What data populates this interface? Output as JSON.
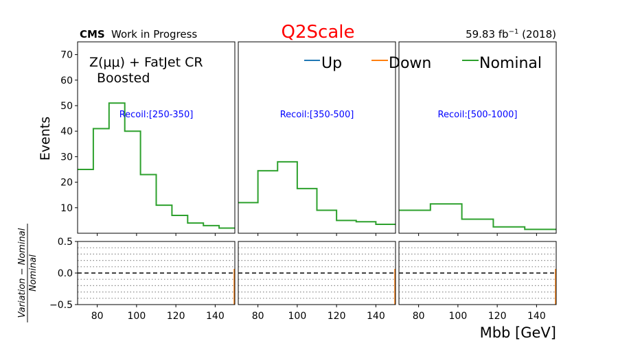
{
  "header": {
    "experiment": "CMS",
    "experiment_note": "Work in Progress",
    "title": "Q2Scale",
    "title_color": "#ff0000",
    "lumi_value": "59.83 fb",
    "lumi_exp": "−1",
    "lumi_year": "(2018)"
  },
  "region": {
    "line1": "Z(μμ) + FatJet CR",
    "line2": "Boosted"
  },
  "legend": [
    {
      "label": "Up",
      "color": "#1f77b4"
    },
    {
      "label": "Down",
      "color": "#ff7f0e"
    },
    {
      "label": "Nominal",
      "color": "#2ca02c"
    }
  ],
  "axes": {
    "ylabel_top": "Events",
    "ylabel_bottom_num": "Variation − Nominal",
    "ylabel_bottom_den": "Nominal",
    "xlabel": "Mbb [GeV]"
  },
  "chart_data": {
    "type": "step",
    "xlim": [
      70,
      150
    ],
    "ylim_top": [
      0,
      75
    ],
    "ylim_ratio": [
      -0.5,
      0.5
    ],
    "x_ticks": [
      80,
      100,
      120,
      140
    ],
    "y_ticks_top": [
      10,
      20,
      30,
      40,
      50,
      60,
      70
    ],
    "y_ticks_ratio": [
      -0.5,
      0.0,
      0.5
    ],
    "ratio_gridlines": [
      0.4,
      0.3,
      0.2,
      0.1,
      -0.1,
      -0.2,
      -0.3,
      -0.4
    ],
    "series_color": "#2ca02c",
    "panels": [
      {
        "label": "Recoil:[250-350]",
        "edges": [
          70,
          78,
          86,
          94,
          102,
          110,
          118,
          126,
          134,
          142,
          150
        ],
        "nominal": [
          25,
          41,
          51,
          40,
          23,
          11,
          7,
          4,
          3,
          2
        ]
      },
      {
        "label": "Recoil:[350-500]",
        "edges": [
          70,
          80,
          90,
          100,
          110,
          120,
          130,
          140,
          150
        ],
        "nominal": [
          12,
          24.5,
          28,
          17.5,
          9,
          5,
          4.5,
          3.5
        ]
      },
      {
        "label": "Recoil:[500-1000]",
        "edges": [
          70,
          86,
          102,
          118,
          134,
          150
        ],
        "nominal": [
          9,
          11.5,
          5.5,
          2.5,
          1.5
        ]
      }
    ]
  }
}
